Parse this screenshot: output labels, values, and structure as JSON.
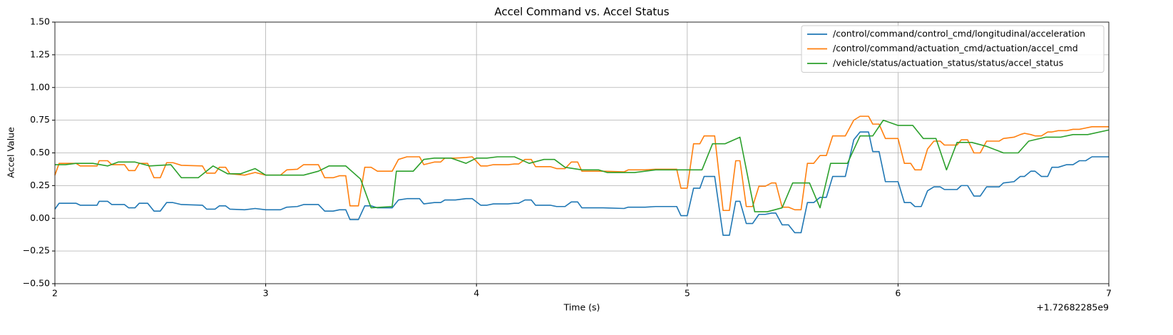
{
  "chart_data": {
    "type": "line",
    "title": "Accel Command vs. Accel Status",
    "xlabel": "Time (s)",
    "ylabel": "Accel Value",
    "x_offset_label": "+1.72682285e9",
    "xlim": [
      2,
      7
    ],
    "xticks": [
      2,
      3,
      4,
      5,
      6,
      7
    ],
    "ylim": [
      -0.5,
      1.5
    ],
    "yticks": [
      {
        "value": -0.5,
        "label": "−0.50"
      },
      {
        "value": -0.25,
        "label": "−0.25"
      },
      {
        "value": 0,
        "label": "0.00"
      },
      {
        "value": 0.25,
        "label": "0.25"
      },
      {
        "value": 0.5,
        "label": "0.50"
      },
      {
        "value": 0.75,
        "label": "0.75"
      },
      {
        "value": 1,
        "label": "1.00"
      },
      {
        "value": 1.25,
        "label": "1.25"
      },
      {
        "value": 1.5,
        "label": "1.50"
      }
    ],
    "grid": true,
    "legend": "upper right",
    "x": [
      2.0,
      2.02,
      2.1,
      2.12,
      2.2,
      2.21,
      2.25,
      2.27,
      2.33,
      2.35,
      2.38,
      2.4,
      2.44,
      2.47,
      2.5,
      2.53,
      2.56,
      2.6,
      2.7,
      2.72,
      2.76,
      2.78,
      2.81,
      2.83,
      2.9,
      2.95,
      3.0,
      3.07,
      3.1,
      3.15,
      3.18,
      3.25,
      3.28,
      3.32,
      3.35,
      3.38,
      3.4,
      3.44,
      3.47,
      3.5,
      3.53,
      3.6,
      3.63,
      3.67,
      3.73,
      3.75,
      3.8,
      3.83,
      3.85,
      3.9,
      3.95,
      3.98,
      4.02,
      4.05,
      4.08,
      4.15,
      4.18,
      4.2,
      4.23,
      4.26,
      4.28,
      4.35,
      4.38,
      4.42,
      4.45,
      4.48,
      4.5,
      4.6,
      4.7,
      4.72,
      4.8,
      4.85,
      4.95,
      4.97,
      5.0,
      5.03,
      5.06,
      5.08,
      5.13,
      5.17,
      5.2,
      5.23,
      5.25,
      5.28,
      5.31,
      5.34,
      5.37,
      5.4,
      5.42,
      5.45,
      5.48,
      5.51,
      5.54,
      5.57,
      5.6,
      5.63,
      5.66,
      5.69,
      5.75,
      5.79,
      5.82,
      5.86,
      5.88,
      5.91,
      5.94,
      6.0,
      6.03,
      6.06,
      6.08,
      6.11,
      6.14,
      6.17,
      6.2,
      6.22,
      6.28,
      6.3,
      6.33,
      6.36,
      6.39,
      6.42,
      6.48,
      6.5,
      6.55,
      6.58,
      6.6,
      6.63,
      6.65,
      6.68,
      6.71,
      6.73,
      6.76,
      6.8,
      6.83,
      6.86,
      6.89,
      6.92,
      7.0
    ],
    "series": [
      {
        "name": "/control/command/control_cmd/longitudinal/acceleration",
        "color": "#1f77b4",
        "values": [
          0.07,
          0.115,
          0.115,
          0.1,
          0.1,
          0.13,
          0.13,
          0.105,
          0.105,
          0.08,
          0.08,
          0.115,
          0.115,
          0.055,
          0.055,
          0.12,
          0.12,
          0.105,
          0.1,
          0.07,
          0.07,
          0.095,
          0.095,
          0.07,
          0.065,
          0.075,
          0.065,
          0.065,
          0.085,
          0.09,
          0.105,
          0.105,
          0.055,
          0.055,
          0.065,
          0.065,
          -0.01,
          -0.01,
          0.095,
          0.095,
          0.08,
          0.08,
          0.14,
          0.15,
          0.15,
          0.11,
          0.12,
          0.12,
          0.14,
          0.14,
          0.15,
          0.15,
          0.1,
          0.1,
          0.11,
          0.11,
          0.115,
          0.115,
          0.14,
          0.14,
          0.1,
          0.1,
          0.09,
          0.09,
          0.125,
          0.125,
          0.08,
          0.08,
          0.075,
          0.085,
          0.085,
          0.09,
          0.09,
          0.02,
          0.02,
          0.23,
          0.23,
          0.32,
          0.32,
          -0.13,
          -0.13,
          0.13,
          0.13,
          -0.04,
          -0.04,
          0.03,
          0.03,
          0.04,
          0.04,
          -0.05,
          -0.05,
          -0.11,
          -0.11,
          0.12,
          0.12,
          0.16,
          0.16,
          0.32,
          0.32,
          0.6,
          0.66,
          0.66,
          0.51,
          0.51,
          0.28,
          0.28,
          0.12,
          0.12,
          0.09,
          0.09,
          0.21,
          0.24,
          0.24,
          0.22,
          0.22,
          0.25,
          0.25,
          0.17,
          0.17,
          0.24,
          0.24,
          0.27,
          0.28,
          0.32,
          0.32,
          0.36,
          0.36,
          0.32,
          0.32,
          0.39,
          0.39,
          0.41,
          0.41,
          0.44,
          0.44,
          0.47,
          0.47
        ]
      },
      {
        "name": "/control/command/actuation_cmd/actuation/accel_cmd",
        "color": "#ff7f0e",
        "values": [
          0.33,
          0.42,
          0.42,
          0.4,
          0.4,
          0.44,
          0.44,
          0.41,
          0.41,
          0.365,
          0.365,
          0.42,
          0.42,
          0.31,
          0.31,
          0.425,
          0.425,
          0.405,
          0.4,
          0.345,
          0.345,
          0.39,
          0.39,
          0.34,
          0.33,
          0.35,
          0.33,
          0.33,
          0.37,
          0.375,
          0.41,
          0.41,
          0.31,
          0.31,
          0.325,
          0.325,
          0.095,
          0.095,
          0.39,
          0.39,
          0.36,
          0.36,
          0.45,
          0.47,
          0.47,
          0.41,
          0.43,
          0.43,
          0.46,
          0.46,
          0.465,
          0.47,
          0.4,
          0.4,
          0.41,
          0.41,
          0.415,
          0.415,
          0.45,
          0.45,
          0.395,
          0.395,
          0.38,
          0.38,
          0.43,
          0.43,
          0.36,
          0.36,
          0.355,
          0.37,
          0.37,
          0.375,
          0.375,
          0.23,
          0.23,
          0.57,
          0.57,
          0.63,
          0.63,
          0.06,
          0.06,
          0.44,
          0.44,
          0.09,
          0.09,
          0.245,
          0.245,
          0.27,
          0.27,
          0.085,
          0.085,
          0.065,
          0.065,
          0.42,
          0.42,
          0.48,
          0.48,
          0.63,
          0.63,
          0.75,
          0.78,
          0.78,
          0.72,
          0.72,
          0.61,
          0.61,
          0.42,
          0.42,
          0.37,
          0.37,
          0.53,
          0.59,
          0.59,
          0.56,
          0.56,
          0.6,
          0.6,
          0.5,
          0.5,
          0.59,
          0.59,
          0.61,
          0.62,
          0.64,
          0.65,
          0.64,
          0.63,
          0.63,
          0.66,
          0.66,
          0.67,
          0.67,
          0.68,
          0.68,
          0.69,
          0.7,
          0.7
        ]
      },
      {
        "name": "/vehicle/status/actuation_status/status/accel_status",
        "color": "#2ca02c",
        "x": [
          2.0,
          2.05,
          2.1,
          2.18,
          2.25,
          2.3,
          2.38,
          2.45,
          2.55,
          2.6,
          2.68,
          2.75,
          2.82,
          2.88,
          2.95,
          3.0,
          3.08,
          3.18,
          3.25,
          3.3,
          3.38,
          3.45,
          3.5,
          3.6,
          3.62,
          3.7,
          3.75,
          3.8,
          3.88,
          3.95,
          4.0,
          4.05,
          4.1,
          4.18,
          4.25,
          4.32,
          4.37,
          4.42,
          4.5,
          4.58,
          4.62,
          4.75,
          4.85,
          5.0,
          5.07,
          5.12,
          5.18,
          5.25,
          5.32,
          5.38,
          5.45,
          5.5,
          5.58,
          5.63,
          5.68,
          5.76,
          5.82,
          5.88,
          5.93,
          6.0,
          6.07,
          6.12,
          6.18,
          6.23,
          6.28,
          6.35,
          6.42,
          6.5,
          6.57,
          6.62,
          6.7,
          6.77,
          6.83,
          6.9,
          7.0
        ],
        "values": [
          0.41,
          0.41,
          0.42,
          0.42,
          0.4,
          0.43,
          0.43,
          0.4,
          0.41,
          0.31,
          0.31,
          0.4,
          0.34,
          0.34,
          0.38,
          0.33,
          0.33,
          0.33,
          0.36,
          0.4,
          0.4,
          0.3,
          0.08,
          0.09,
          0.36,
          0.36,
          0.45,
          0.46,
          0.46,
          0.42,
          0.46,
          0.46,
          0.47,
          0.47,
          0.42,
          0.45,
          0.45,
          0.39,
          0.37,
          0.37,
          0.35,
          0.35,
          0.37,
          0.37,
          0.37,
          0.57,
          0.57,
          0.62,
          0.05,
          0.05,
          0.08,
          0.27,
          0.27,
          0.08,
          0.42,
          0.42,
          0.63,
          0.63,
          0.75,
          0.71,
          0.71,
          0.61,
          0.61,
          0.37,
          0.58,
          0.58,
          0.55,
          0.5,
          0.5,
          0.59,
          0.62,
          0.62,
          0.64,
          0.64,
          0.675
        ]
      }
    ]
  }
}
